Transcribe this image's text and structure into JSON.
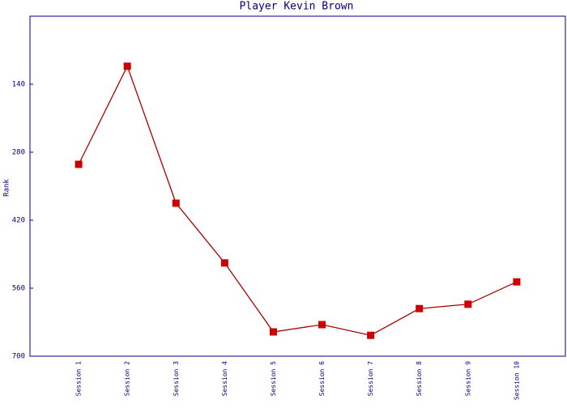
{
  "chart_data": {
    "type": "line",
    "title": "Player Kevin Brown",
    "y_label": "Rank",
    "categories": [
      "Session 1",
      "Session 2",
      "Session 3",
      "Session 4",
      "Session 5",
      "Session 6",
      "Session 7",
      "Session 8",
      "Session 9",
      "Session 10"
    ],
    "series": [
      {
        "name": "Rank",
        "color": "#aa0000",
        "marker_color": "#cc0000",
        "values": [
          305,
          103,
          385,
          508,
          650,
          635,
          657,
          602,
          593,
          547
        ]
      }
    ],
    "ylim": [
      0,
      700
    ],
    "y_inverted": true,
    "yticks": [
      140,
      280,
      420,
      560,
      700
    ],
    "grid": false
  }
}
